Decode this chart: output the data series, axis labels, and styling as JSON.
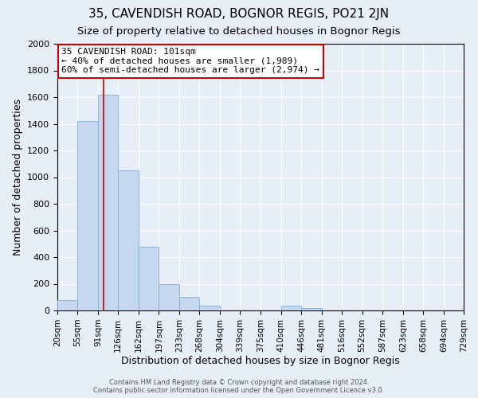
{
  "title": "35, CAVENDISH ROAD, BOGNOR REGIS, PO21 2JN",
  "subtitle": "Size of property relative to detached houses in Bognor Regis",
  "xlabel": "Distribution of detached houses by size in Bognor Regis",
  "ylabel": "Number of detached properties",
  "bin_edges": [
    20,
    55,
    91,
    126,
    162,
    197,
    233,
    268,
    304,
    339,
    375,
    410,
    446,
    481,
    516,
    552,
    587,
    623,
    658,
    694,
    729
  ],
  "bar_heights": [
    80,
    1420,
    1620,
    1050,
    480,
    200,
    100,
    35,
    0,
    0,
    0,
    35,
    20,
    0,
    0,
    0,
    0,
    0,
    0,
    0
  ],
  "bar_color": "#c5d8f0",
  "bar_edge_color": "#7bafd4",
  "bg_color": "#e8eef8",
  "grid_color": "#ffffff",
  "property_size": 101,
  "red_line_color": "#cc0000",
  "annotation_line1": "35 CAVENDISH ROAD: 101sqm",
  "annotation_line2": "← 40% of detached houses are smaller (1,989)",
  "annotation_line3": "60% of semi-detached houses are larger (2,974) →",
  "annotation_box_color": "#ffffff",
  "annotation_box_edge_color": "#cc0000",
  "footer_line1": "Contains HM Land Registry data © Crown copyright and database right 2024.",
  "footer_line2": "Contains public sector information licensed under the Open Government Licence v3.0.",
  "ylim": [
    0,
    2000
  ],
  "yticks": [
    0,
    200,
    400,
    600,
    800,
    1000,
    1200,
    1400,
    1600,
    1800,
    2000
  ],
  "title_fontsize": 11,
  "subtitle_fontsize": 9.5,
  "xlabel_fontsize": 9,
  "ylabel_fontsize": 9,
  "tick_fontsize": 7.5,
  "annotation_fontsize": 8,
  "footer_fontsize": 6
}
